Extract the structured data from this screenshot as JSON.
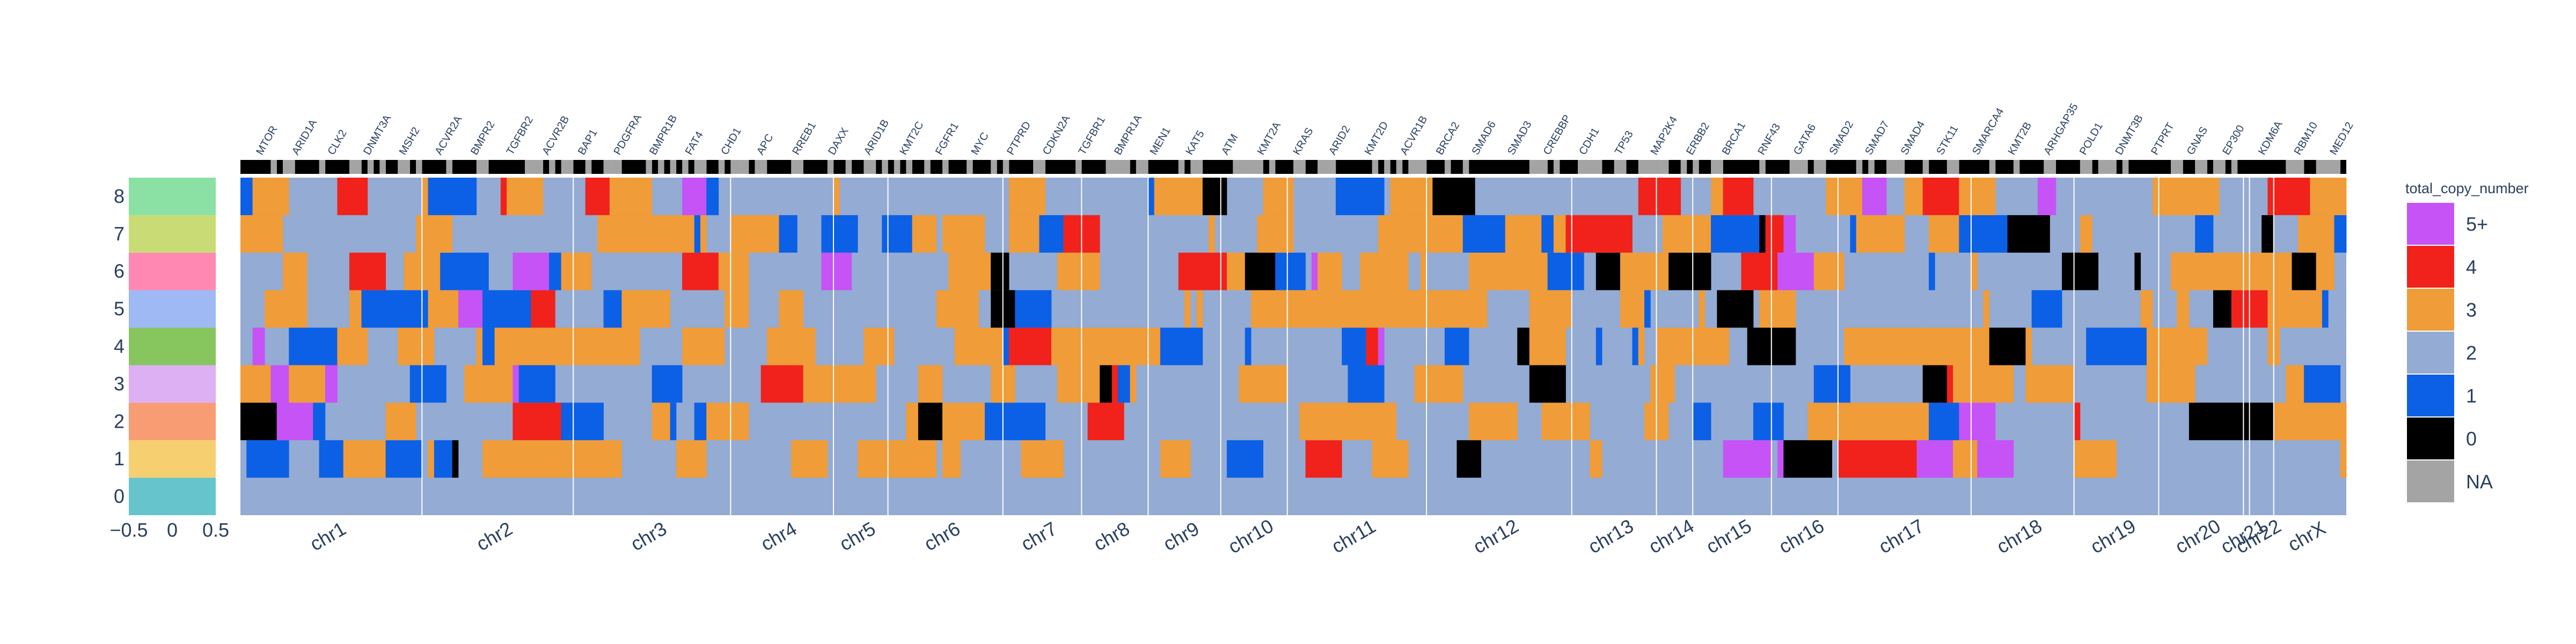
{
  "chart_data": {
    "type": "heatmap",
    "title": "",
    "rows": [
      "0",
      "1",
      "2",
      "3",
      "4",
      "5",
      "6",
      "7",
      "8"
    ],
    "left_axis_ticks": [
      "−0.5",
      "0",
      "0.5"
    ],
    "chromosomes": [
      {
        "label": "chr1",
        "bins": 30
      },
      {
        "label": "chr2",
        "bins": 25
      },
      {
        "label": "chr3",
        "bins": 26
      },
      {
        "label": "chr4",
        "bins": 17
      },
      {
        "label": "chr5",
        "bins": 9
      },
      {
        "label": "chr6",
        "bins": 19
      },
      {
        "label": "chr7",
        "bins": 13
      },
      {
        "label": "chr8",
        "bins": 11
      },
      {
        "label": "chr9",
        "bins": 12
      },
      {
        "label": "chr10",
        "bins": 11
      },
      {
        "label": "chr11",
        "bins": 23
      },
      {
        "label": "chr12",
        "bins": 24
      },
      {
        "label": "chr13",
        "bins": 14
      },
      {
        "label": "chr14",
        "bins": 6
      },
      {
        "label": "chr15",
        "bins": 13
      },
      {
        "label": "chr16",
        "bins": 11
      },
      {
        "label": "chr17",
        "bins": 22
      },
      {
        "label": "chr18",
        "bins": 17
      },
      {
        "label": "chr19",
        "bins": 14
      },
      {
        "label": "chr20",
        "bins": 14
      },
      {
        "label": "chr21",
        "bins": 1
      },
      {
        "label": "chr22",
        "bins": 4
      },
      {
        "label": "chrX",
        "bins": 12
      }
    ],
    "genes": [
      "MTOR",
      "ARID1A",
      "CLK2",
      "DNMT3A",
      "MSH2",
      "ACVR2A",
      "BMPR2",
      "TGFBR2",
      "ACVR2B",
      "BAP1",
      "PDGFRA",
      "BMPR1B",
      "FAT4",
      "CHD1",
      "APC",
      "RREB1",
      "DAXX",
      "ARID1B",
      "KMT2C",
      "FGFR1",
      "MYC",
      "PTPRD",
      "CDKN2A",
      "TGFBR1",
      "BMPR1A",
      "MEN1",
      "KAT5",
      "ATM",
      "KMT2A",
      "KRAS",
      "ARID2",
      "KMT2D",
      "ACVR1B",
      "BRCA2",
      "SMAD6",
      "SMAD3",
      "CREBBP",
      "CDH1",
      "TP53",
      "MAP2K4",
      "ERBB2",
      "BRCA1",
      "RNF43",
      "GATA6",
      "SMAD2",
      "SMAD7",
      "SMAD4",
      "STK11",
      "SMARCA4",
      "KMT2B",
      "ARHGAP35",
      "POLD1",
      "DNMT3B",
      "PTPRT",
      "GNAS",
      "EP300",
      "KDM6A",
      "RBM10",
      "MED12"
    ],
    "row_colors": [
      "#66c5cc",
      "#f6cf71",
      "#f89c74",
      "#dcb0f2",
      "#87c55f",
      "#9eb9f3",
      "#fe88b1",
      "#c9db74",
      "#8be0a4"
    ],
    "legend": {
      "title": "total_copy_number",
      "entries": [
        {
          "label": "5+",
          "color": "#c653f5"
        },
        {
          "label": "4",
          "color": "#f0221b"
        },
        {
          "label": "3",
          "color": "#f09c38"
        },
        {
          "label": "2",
          "color": "#94abd3"
        },
        {
          "label": "1",
          "color": "#0b60e6"
        },
        {
          "label": "0",
          "color": "#000000"
        },
        {
          "label": "NA",
          "color": "#a4a4a4"
        }
      ]
    }
  }
}
